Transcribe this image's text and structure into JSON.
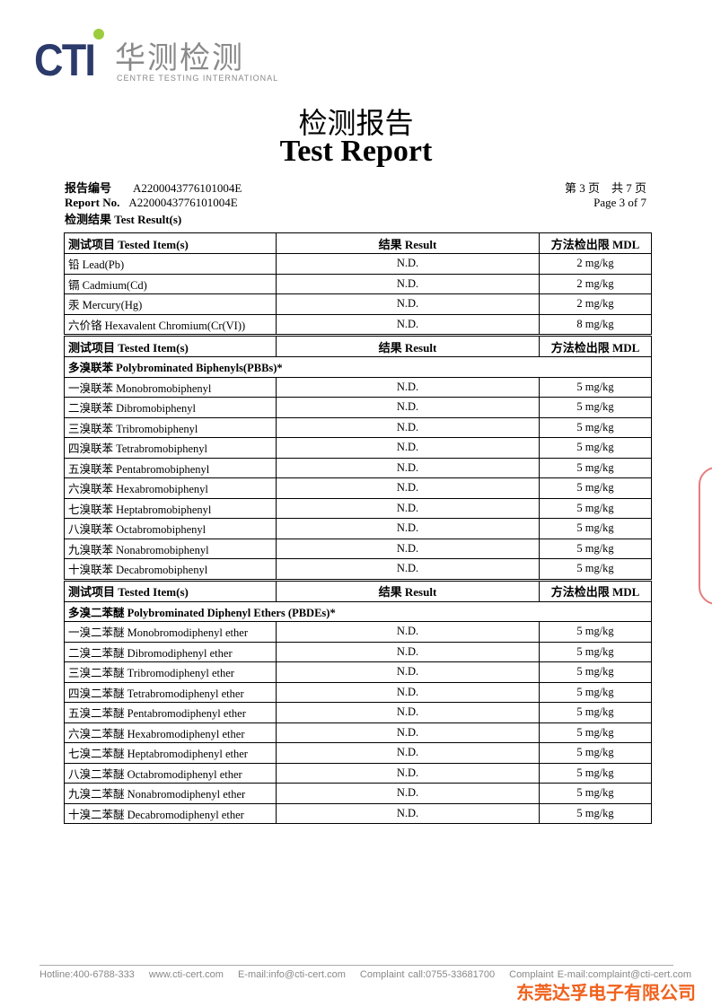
{
  "logo": {
    "brand": "CTI",
    "cn": "华测检测",
    "en": "CENTRE TESTING INTERNATIONAL"
  },
  "title": {
    "cn": "检测报告",
    "en": "Test Report"
  },
  "report": {
    "no_label_cn": "报告编号",
    "no_label_en": "Report No.",
    "no_cn": "A2200043776101004E",
    "no_en": "A2200043776101004E",
    "page_cn": "第 3 页　共 7 页",
    "page_en": "Page 3 of 7"
  },
  "section_label": "检测结果  Test Result(s)",
  "headers": {
    "item": "测试项目  Tested Item(s)",
    "result": "结果  Result",
    "mdl": "方法检出限  MDL"
  },
  "sections": [
    {
      "subtitle": "",
      "rows": [
        [
          "铅  Lead(Pb)",
          "N.D.",
          "2 mg/kg"
        ],
        [
          "镉  Cadmium(Cd)",
          "N.D.",
          "2 mg/kg"
        ],
        [
          "汞  Mercury(Hg)",
          "N.D.",
          "2 mg/kg"
        ],
        [
          "六价铬  Hexavalent Chromium(Cr(VI))",
          "N.D.",
          "8 mg/kg"
        ]
      ]
    },
    {
      "subtitle": "多溴联苯  Polybrominated Biphenyls(PBBs)*",
      "rows": [
        [
          "一溴联苯  Monobromobiphenyl",
          "N.D.",
          "5 mg/kg"
        ],
        [
          "二溴联苯  Dibromobiphenyl",
          "N.D.",
          "5 mg/kg"
        ],
        [
          "三溴联苯  Tribromobiphenyl",
          "N.D.",
          "5 mg/kg"
        ],
        [
          "四溴联苯  Tetrabromobiphenyl",
          "N.D.",
          "5 mg/kg"
        ],
        [
          "五溴联苯  Pentabromobiphenyl",
          "N.D.",
          "5 mg/kg"
        ],
        [
          "六溴联苯  Hexabromobiphenyl",
          "N.D.",
          "5 mg/kg"
        ],
        [
          "七溴联苯  Heptabromobiphenyl",
          "N.D.",
          "5 mg/kg"
        ],
        [
          "八溴联苯  Octabromobiphenyl",
          "N.D.",
          "5 mg/kg"
        ],
        [
          "九溴联苯  Nonabromobiphenyl",
          "N.D.",
          "5 mg/kg"
        ],
        [
          "十溴联苯  Decabromobiphenyl",
          "N.D.",
          "5 mg/kg"
        ]
      ]
    },
    {
      "subtitle": "多溴二苯醚  Polybrominated Diphenyl Ethers (PBDEs)*",
      "rows": [
        [
          "一溴二苯醚  Monobromodiphenyl ether",
          "N.D.",
          "5 mg/kg"
        ],
        [
          "二溴二苯醚  Dibromodiphenyl ether",
          "N.D.",
          "5 mg/kg"
        ],
        [
          "三溴二苯醚  Tribromodiphenyl ether",
          "N.D.",
          "5 mg/kg"
        ],
        [
          "四溴二苯醚  Tetrabromodiphenyl ether",
          "N.D.",
          "5 mg/kg"
        ],
        [
          "五溴二苯醚  Pentabromodiphenyl ether",
          "N.D.",
          "5 mg/kg"
        ],
        [
          "六溴二苯醚  Hexabromodiphenyl ether",
          "N.D.",
          "5 mg/kg"
        ],
        [
          "七溴二苯醚  Heptabromodiphenyl ether",
          "N.D.",
          "5 mg/kg"
        ],
        [
          "八溴二苯醚  Octabromodiphenyl ether",
          "N.D.",
          "5 mg/kg"
        ],
        [
          "九溴二苯醚  Nonabromodiphenyl ether",
          "N.D.",
          "5 mg/kg"
        ],
        [
          "十溴二苯醚  Decabromodiphenyl ether",
          "N.D.",
          "5 mg/kg"
        ]
      ]
    }
  ],
  "footer": [
    "Hotline:400-6788-333",
    "www.cti-cert.com",
    "E-mail:info@cti-cert.com",
    "Complaint call:0755-33681700",
    "Complaint E-mail:complaint@cti-cert.com"
  ],
  "company": "东莞达孚电子有限公司"
}
